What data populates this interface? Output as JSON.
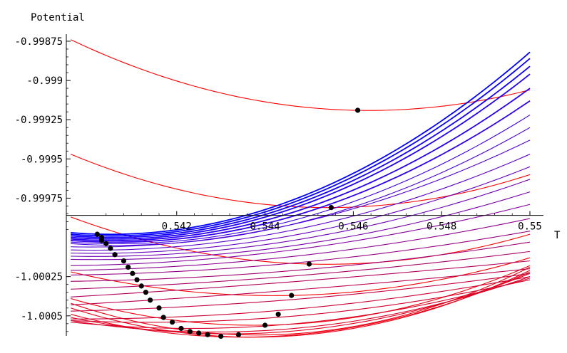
{
  "chart_data": {
    "type": "line",
    "title": "",
    "xlabel": "T",
    "ylabel": "Potential",
    "xlim": [
      0.5395,
      0.55
    ],
    "ylim": [
      -1.000628,
      -0.998705
    ],
    "x_axis_crossing_y": -0.99986,
    "x_ticks": [
      {
        "value": 0.542,
        "label": "0.542"
      },
      {
        "value": 0.544,
        "label": "0.544"
      },
      {
        "value": 0.546,
        "label": "0.546"
      },
      {
        "value": 0.548,
        "label": "0.548"
      },
      {
        "value": 0.55,
        "label": "0.55"
      }
    ],
    "y_ticks": [
      {
        "value": -0.99875,
        "label": "-0.99875"
      },
      {
        "value": -0.999,
        "label": "-0.999"
      },
      {
        "value": -0.99925,
        "label": "-0.99925"
      },
      {
        "value": -0.9995,
        "label": "-0.9995"
      },
      {
        "value": -0.99975,
        "label": "-0.99975"
      },
      {
        "value": -1.00025,
        "label": "-1.00025"
      },
      {
        "value": -1.0005,
        "label": "-1.0005"
      }
    ],
    "series": [
      {
        "color": "#ff0000",
        "x_min": 0.5396,
        "x_max": 0.55,
        "points": [
          [
            0.5396,
            -0.99874
          ],
          [
            0.546,
            -0.99919
          ],
          [
            0.55,
            -0.99906
          ]
        ]
      },
      {
        "color": "#ff0000",
        "x_min": 0.5396,
        "x_max": 0.55,
        "points": [
          [
            0.5396,
            -0.99947
          ],
          [
            0.5455,
            -0.99981
          ],
          [
            0.55,
            -0.9996
          ]
        ]
      },
      {
        "color": "#ff0000",
        "x_min": 0.5396,
        "x_max": 0.55,
        "points": [
          [
            0.5396,
            -0.99987
          ],
          [
            0.545,
            -1.00017
          ],
          [
            0.55,
            -0.99998
          ]
        ]
      },
      {
        "color": "#fa0005",
        "x_min": 0.5396,
        "x_max": 0.55,
        "points": [
          [
            0.5396,
            -1.00022
          ],
          [
            0.5446,
            -1.00037
          ],
          [
            0.55,
            -1.00013
          ]
        ]
      },
      {
        "color": "#f5000a",
        "x_min": 0.5396,
        "x_max": 0.55,
        "points": [
          [
            0.5396,
            -1.00039
          ],
          [
            0.5438,
            -1.00056
          ],
          [
            0.55,
            -1.00018
          ]
        ]
      },
      {
        "color": "#f0000f",
        "x_min": 0.5396,
        "x_max": 0.55,
        "points": [
          [
            0.5396,
            -1.00042
          ],
          [
            0.5434,
            -1.00062
          ],
          [
            0.55,
            -1.00019
          ]
        ]
      },
      {
        "color": "#eb0014",
        "x_min": 0.5396,
        "x_max": 0.55,
        "points": [
          [
            0.5396,
            -1.00045
          ],
          [
            0.543,
            -1.00063
          ],
          [
            0.55,
            -1.00021
          ]
        ]
      },
      {
        "color": "#e60019",
        "x_min": 0.5396,
        "x_max": 0.55,
        "points": [
          [
            0.5396,
            -1.00049
          ],
          [
            0.5427,
            -1.00063
          ],
          [
            0.55,
            -1.00022
          ]
        ]
      },
      {
        "color": "#e1001e",
        "x_min": 0.5396,
        "x_max": 0.55,
        "points": [
          [
            0.5396,
            -1.00051
          ],
          [
            0.5424,
            -1.00061
          ],
          [
            0.55,
            -1.00023
          ]
        ]
      },
      {
        "color": "#dc0023",
        "x_min": 0.5396,
        "x_max": 0.55,
        "points": [
          [
            0.5396,
            -1.00053
          ],
          [
            0.5422,
            -1.0006
          ],
          [
            0.55,
            -1.00025
          ]
        ]
      },
      {
        "color": "#d70028",
        "x_min": 0.5396,
        "x_max": 0.55,
        "points": [
          [
            0.5396,
            -1.00054
          ],
          [
            0.5421,
            -1.00058
          ],
          [
            0.55,
            -1.00026
          ]
        ]
      },
      {
        "color": "#d2002d",
        "x_min": 0.5396,
        "x_max": 0.55,
        "points": [
          [
            0.5396,
            -1.00053
          ],
          [
            0.5419,
            -1.00054
          ],
          [
            0.55,
            -1.00027
          ]
        ]
      },
      {
        "color": "#cd0032",
        "x_min": 0.5396,
        "x_max": 0.55,
        "points": [
          [
            0.5396,
            -1.00052
          ],
          [
            0.5417,
            -1.00051
          ],
          [
            0.55,
            -1.00025
          ]
        ]
      },
      {
        "color": "#c40040",
        "x_min": 0.5396,
        "x_max": 0.55,
        "points": [
          [
            0.5396,
            -1.00047
          ],
          [
            0.5416,
            -1.00045
          ],
          [
            0.55,
            -1.00023
          ]
        ]
      },
      {
        "color": "#bb004d",
        "x_min": 0.5396,
        "x_max": 0.55,
        "points": [
          [
            0.5396,
            -1.00043
          ],
          [
            0.5414,
            -1.0004
          ],
          [
            0.55,
            -1.0002
          ]
        ]
      },
      {
        "color": "#b2005a",
        "x_min": 0.5396,
        "x_max": 0.55,
        "points": [
          [
            0.5396,
            -1.00038
          ],
          [
            0.5413,
            -1.00035
          ],
          [
            0.55,
            -1.00015
          ]
        ]
      },
      {
        "color": "#a90067",
        "x_min": 0.5396,
        "x_max": 0.55,
        "points": [
          [
            0.5396,
            -1.00033
          ],
          [
            0.5412,
            -1.00031
          ],
          [
            0.55,
            -1.00009
          ]
        ]
      },
      {
        "color": "#a00074",
        "x_min": 0.5396,
        "x_max": 0.55,
        "points": [
          [
            0.5396,
            -1.00028
          ],
          [
            0.5411,
            -1.00027
          ],
          [
            0.55,
            -1.00003
          ]
        ]
      },
      {
        "color": "#960082",
        "x_min": 0.5396,
        "x_max": 0.55,
        "points": [
          [
            0.5396,
            -1.00024
          ],
          [
            0.541,
            -1.00023
          ],
          [
            0.55,
            -0.99996
          ]
        ]
      },
      {
        "color": "#8c008f",
        "x_min": 0.5396,
        "x_max": 0.55,
        "points": [
          [
            0.5396,
            -1.00021
          ],
          [
            0.5409,
            -1.0002
          ],
          [
            0.55,
            -0.99988
          ]
        ]
      },
      {
        "color": "#82009c",
        "x_min": 0.5396,
        "x_max": 0.55,
        "points": [
          [
            0.5396,
            -1.00018
          ],
          [
            0.5409,
            -1.00017
          ],
          [
            0.55,
            -0.99979
          ]
        ]
      },
      {
        "color": "#7800a9",
        "x_min": 0.5396,
        "x_max": 0.55,
        "points": [
          [
            0.5396,
            -1.00014
          ],
          [
            0.5408,
            -1.00014
          ],
          [
            0.55,
            -0.99971
          ]
        ]
      },
      {
        "color": "#6e00b4",
        "x_min": 0.5396,
        "x_max": 0.55,
        "points": [
          [
            0.5396,
            -1.00012
          ],
          [
            0.5407,
            -1.00012
          ],
          [
            0.55,
            -0.99963
          ]
        ]
      },
      {
        "color": "#6400bf",
        "x_min": 0.5396,
        "x_max": 0.55,
        "points": [
          [
            0.5396,
            -1.0001
          ],
          [
            0.5407,
            -1.0001
          ],
          [
            0.55,
            -0.99955
          ]
        ]
      },
      {
        "color": "#5a00c9",
        "x_min": 0.5396,
        "x_max": 0.55,
        "points": [
          [
            0.5396,
            -1.00008
          ],
          [
            0.5406,
            -1.00008
          ],
          [
            0.55,
            -0.99947
          ]
        ]
      },
      {
        "color": "#5000d3",
        "x_min": 0.5396,
        "x_max": 0.55,
        "points": [
          [
            0.5396,
            -1.00006
          ],
          [
            0.5405,
            -1.00006
          ],
          [
            0.55,
            -0.99938
          ]
        ]
      },
      {
        "color": "#4600dc",
        "x_min": 0.5396,
        "x_max": 0.55,
        "points": [
          [
            0.5396,
            -1.00004
          ],
          [
            0.5405,
            -1.00005
          ],
          [
            0.55,
            -0.9993
          ]
        ]
      },
      {
        "color": "#3c00e4",
        "x_min": 0.5396,
        "x_max": 0.55,
        "points": [
          [
            0.5396,
            -1.00003
          ],
          [
            0.5404,
            -1.00004
          ],
          [
            0.55,
            -0.99922
          ]
        ]
      },
      {
        "color": "#3200eb",
        "x_min": 0.5396,
        "x_max": 0.55,
        "points": [
          [
            0.5396,
            -1.00002
          ],
          [
            0.5404,
            -1.00003
          ],
          [
            0.55,
            -0.99913
          ]
        ]
      },
      {
        "color": "#2800f1",
        "x_min": 0.5396,
        "x_max": 0.55,
        "points": [
          [
            0.5396,
            -1.00001
          ],
          [
            0.5404,
            -1.00002
          ],
          [
            0.55,
            -0.99905
          ]
        ]
      },
      {
        "color": "#1e00f6",
        "x_min": 0.5396,
        "x_max": 0.55,
        "points": [
          [
            0.5396,
            -1.0
          ],
          [
            0.5403,
            -1.00001
          ],
          [
            0.55,
            -0.99896
          ]
        ]
      },
      {
        "color": "#1400fa",
        "x_min": 0.5396,
        "x_max": 0.55,
        "points": [
          [
            0.5396,
            -0.99999
          ],
          [
            0.5403,
            -1.0
          ],
          [
            0.55,
            -0.99891
          ]
        ]
      },
      {
        "color": "#0a00fd",
        "x_min": 0.5396,
        "x_max": 0.55,
        "points": [
          [
            0.5396,
            -0.99998
          ],
          [
            0.5403,
            -0.99999
          ],
          [
            0.55,
            -0.99886
          ]
        ]
      },
      {
        "color": "#0000ff",
        "x_min": 0.5396,
        "x_max": 0.55,
        "points": [
          [
            0.5396,
            -0.99997
          ],
          [
            0.5403,
            -0.99998
          ],
          [
            0.55,
            -0.99882
          ]
        ]
      }
    ],
    "minima_points": [
      [
        0.5461,
        -0.99919
      ],
      [
        0.5455,
        -0.99981
      ],
      [
        0.545,
        -1.00017
      ],
      [
        0.5446,
        -1.00037
      ],
      [
        0.5443,
        -1.00049
      ],
      [
        0.544,
        -1.00056
      ],
      [
        0.5434,
        -1.00062
      ],
      [
        0.543,
        -1.00063
      ],
      [
        0.5427,
        -1.00062
      ],
      [
        0.5425,
        -1.00061
      ],
      [
        0.5423,
        -1.0006
      ],
      [
        0.5421,
        -1.00058
      ],
      [
        0.5419,
        -1.00054
      ],
      [
        0.5417,
        -1.00051
      ],
      [
        0.5416,
        -1.00045
      ],
      [
        0.5414,
        -1.0004
      ],
      [
        0.5413,
        -1.00035
      ],
      [
        0.5412,
        -1.00031
      ],
      [
        0.5411,
        -1.00027
      ],
      [
        0.541,
        -1.00023
      ],
      [
        0.5409,
        -1.00019
      ],
      [
        0.5408,
        -1.00015
      ],
      [
        0.5406,
        -1.00011
      ],
      [
        0.5405,
        -1.00007
      ],
      [
        0.5404,
        -1.00004
      ],
      [
        0.5403,
        -1.00002
      ],
      [
        0.5403,
        -1.0
      ],
      [
        0.5402,
        -0.99998
      ]
    ]
  }
}
